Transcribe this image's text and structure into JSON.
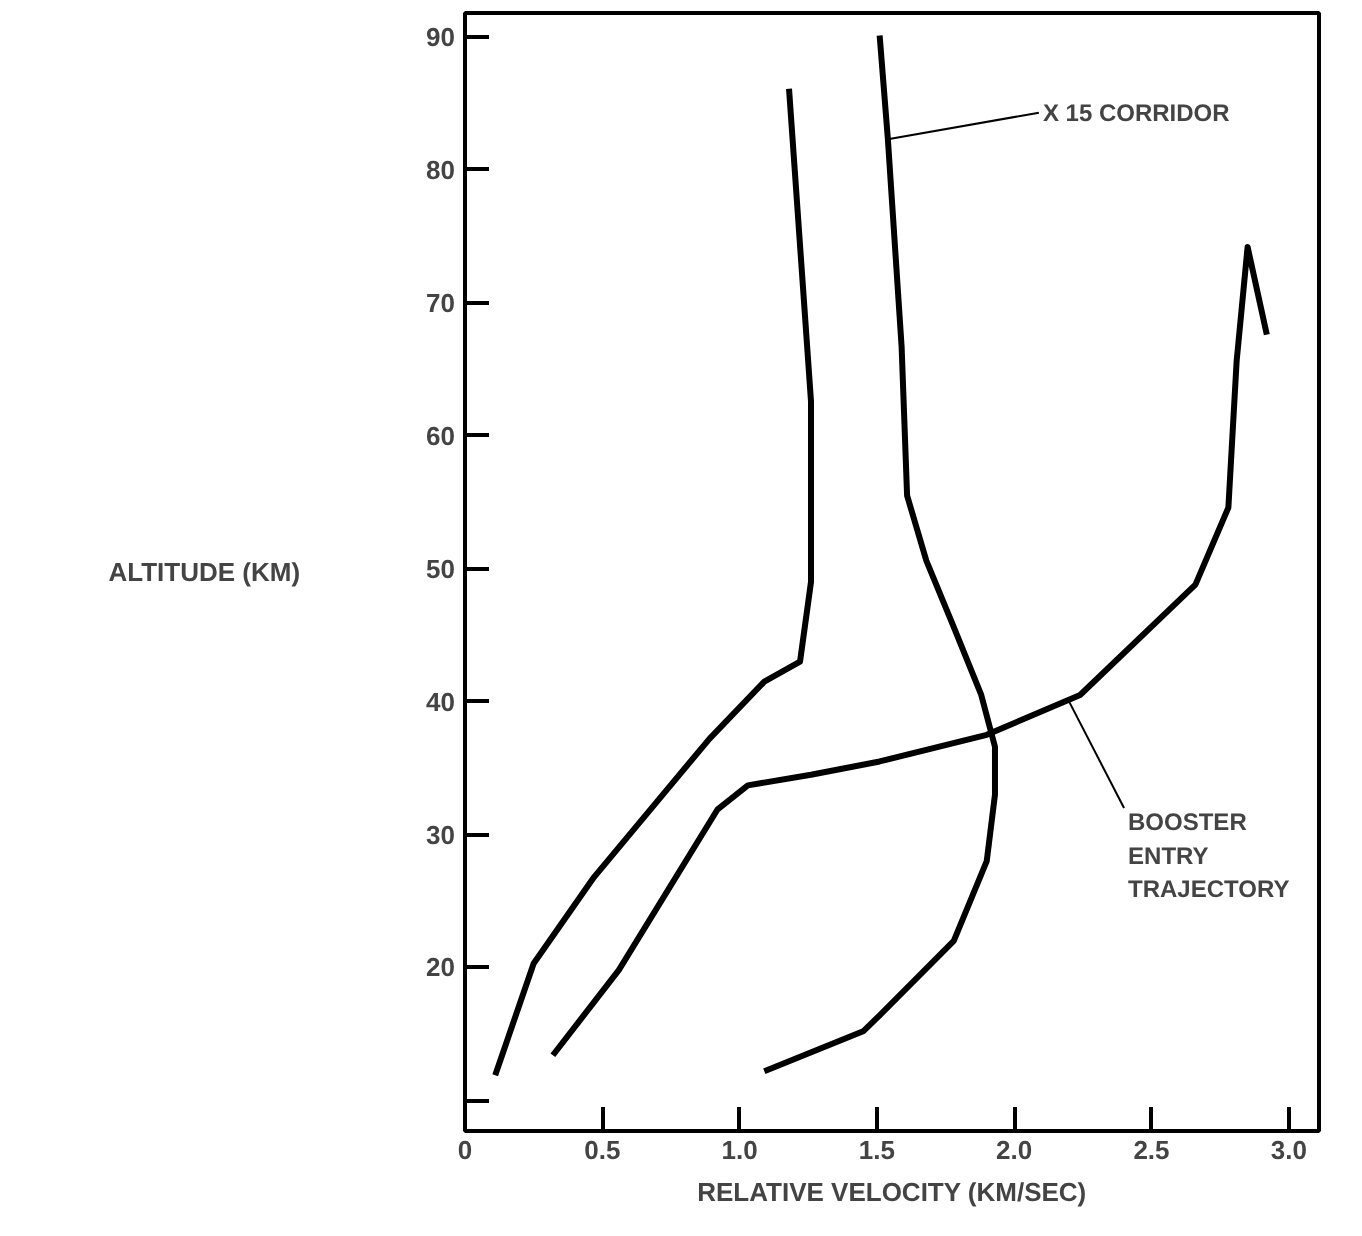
{
  "chart_data": {
    "type": "line",
    "xlabel": "RELATIVE VELOCITY (KM/SEC)",
    "ylabel": "ALTITUDE (KM)",
    "xlim": [
      0,
      3.11
    ],
    "ylim": [
      7.7,
      91.8
    ],
    "xticks": [
      0,
      {
        "value": 0.5,
        "label": "0.5"
      },
      {
        "value": 1.0,
        "label": "1.0"
      },
      {
        "value": 1.5,
        "label": "1.5"
      },
      {
        "value": 2.0,
        "label": "2.0"
      },
      {
        "value": 2.5,
        "label": "2.5"
      },
      {
        "value": 3.0,
        "label": "3.0"
      }
    ],
    "yticks": [
      {
        "value": 10,
        "label": null
      },
      20,
      30,
      40,
      50,
      60,
      70,
      80,
      90
    ],
    "grid": false,
    "marker": "none",
    "line_style": "solid",
    "series": [
      {
        "color": "#000000",
        "x": [
          0.11,
          0.25,
          0.47,
          0.7,
          0.89,
          1.09,
          1.22,
          1.26,
          1.26,
          1.18
        ],
        "values": [
          11.9,
          20.3,
          26.8,
          32.5,
          37.2,
          41.5,
          43,
          49,
          62.6,
          86.1
        ]
      },
      {
        "color": "#000000",
        "x": [
          1.09,
          1.45,
          1.51,
          1.78,
          1.9,
          1.93,
          1.93,
          1.88,
          1.78,
          1.68,
          1.61,
          1.59,
          1.54,
          1.51
        ],
        "values": [
          12.2,
          15.2,
          16.4,
          22,
          28,
          33,
          36.6,
          40.5,
          45.6,
          50.6,
          55.5,
          66.7,
          82.3,
          90.1
        ]
      },
      {
        "color": "#000000",
        "x": [
          0.32,
          0.56,
          0.92,
          1.03,
          1.26,
          1.51,
          1.9,
          2.24,
          2.66,
          2.78,
          2.81,
          2.85,
          2.92
        ],
        "values": [
          13.4,
          19.8,
          31.9,
          33.7,
          34.5,
          35.5,
          37.5,
          40.5,
          48.8,
          54.6,
          65.6,
          74.2,
          67.6
        ]
      }
    ],
    "annotations": [
      {
        "text": "X 15 CORRIDOR",
        "x": 1.54,
        "y": 82.3
      },
      {
        "text": "BOOSTER\nENTRY\nTRAJECTORY",
        "x": 2.2,
        "y": 40
      }
    ]
  }
}
